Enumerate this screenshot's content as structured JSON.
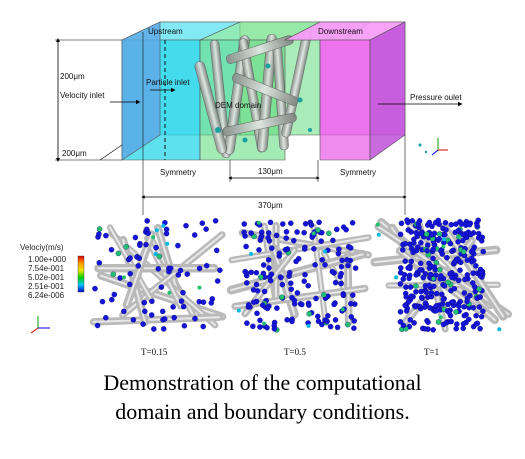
{
  "top": {
    "upstream": "Upstream",
    "downstream": "Downstream",
    "height_label": "200μm",
    "velocity_inlet": "Velocity inlet",
    "particle_inlet": "Particle inlet",
    "dem_domain": "DEM domain",
    "pressure_outlet": "Pressure oulet",
    "depth_label": "200μm",
    "symmetry_left": "Symmetry",
    "middle_width": "130μm",
    "symmetry_right": "Symmetry",
    "total_length": "370μm"
  },
  "legend": {
    "title": "Velociy(m/s)",
    "values": [
      "1.00e+000",
      "7.54e-001",
      "5.02e-001",
      "2.51e-001",
      "6.24e-006"
    ],
    "colors": [
      "#e00000",
      "#ff9900",
      "#e8e800",
      "#00d000",
      "#00c8ff",
      "#0000cc"
    ]
  },
  "panels": [
    {
      "label": "T=0.15",
      "density": 0.15
    },
    {
      "label": "T=0.5",
      "density": 0.5
    },
    {
      "label": "T=1",
      "density": 1
    }
  ],
  "caption": {
    "line1": "Demonstration of the computational",
    "line2": "domain and boundary conditions."
  }
}
